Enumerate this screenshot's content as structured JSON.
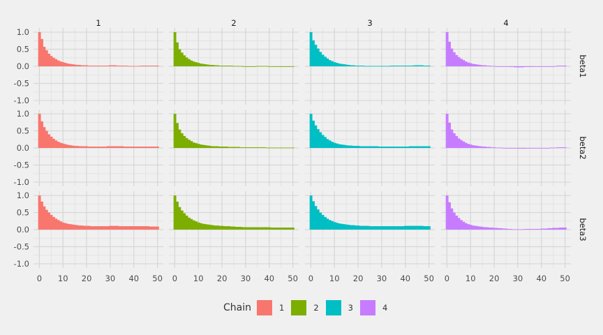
{
  "chart_data": {
    "type": "bar",
    "facet_columns": [
      "1",
      "2",
      "3",
      "4"
    ],
    "facet_rows": [
      "beta1",
      "beta2",
      "beta3"
    ],
    "x_ticks": [
      "0",
      "10",
      "20",
      "30",
      "40",
      "50"
    ],
    "y_ticks": [
      "1.0",
      "0.5",
      "0.0",
      "-0.5",
      "-1.0"
    ],
    "xlim": [
      0,
      50
    ],
    "ylim": [
      -1,
      1
    ],
    "grid": true,
    "legend_position": "bottom",
    "legend": {
      "title": "Chain",
      "items": [
        {
          "label": "1",
          "color": "#F8766D"
        },
        {
          "label": "2",
          "color": "#7CAE00"
        },
        {
          "label": "3",
          "color": "#00BFC4"
        },
        {
          "label": "4",
          "color": "#C77CFF"
        }
      ]
    },
    "lags": [
      0,
      1,
      2,
      3,
      4,
      5,
      6,
      7,
      8,
      9,
      10,
      11,
      12,
      13,
      14,
      15,
      16,
      17,
      18,
      19,
      20,
      21,
      22,
      23,
      24,
      25,
      26,
      27,
      28,
      29,
      30,
      31,
      32,
      33,
      34,
      35,
      36,
      37,
      38,
      39,
      40,
      41,
      42,
      43,
      44,
      45,
      46,
      47,
      48,
      49,
      50
    ],
    "autocorrelation": {
      "beta1": {
        "1": [
          1.0,
          0.8,
          0.57,
          0.47,
          0.37,
          0.3,
          0.25,
          0.21,
          0.17,
          0.14,
          0.12,
          0.1,
          0.08,
          0.07,
          0.06,
          0.05,
          0.04,
          0.04,
          0.03,
          0.03,
          0.03,
          0.02,
          0.02,
          0.02,
          0.02,
          0.02,
          0.02,
          0.02,
          0.02,
          0.02,
          0.03,
          0.03,
          0.03,
          0.02,
          0.02,
          0.02,
          0.02,
          0.02,
          0.01,
          0.01,
          0.01,
          0.01,
          0.01,
          0.02,
          0.02,
          0.02,
          0.02,
          0.02,
          0.02,
          0.02,
          0.02
        ],
        "2": [
          1.0,
          0.7,
          0.5,
          0.4,
          0.32,
          0.26,
          0.21,
          0.17,
          0.14,
          0.12,
          0.1,
          0.08,
          0.07,
          0.06,
          0.05,
          0.04,
          0.04,
          0.03,
          0.03,
          0.02,
          0.02,
          0.02,
          0.02,
          0.02,
          0.02,
          0.01,
          0.01,
          0.01,
          0.01,
          0.0,
          0.0,
          0.0,
          0.0,
          0.0,
          0.0,
          0.01,
          0.01,
          0.01,
          0.01,
          0.01,
          0.0,
          0.0,
          0.0,
          0.0,
          -0.01,
          -0.01,
          -0.01,
          -0.01,
          -0.01,
          -0.01,
          -0.01
        ],
        "3": [
          1.0,
          0.76,
          0.63,
          0.52,
          0.42,
          0.34,
          0.28,
          0.23,
          0.18,
          0.15,
          0.12,
          0.1,
          0.08,
          0.07,
          0.06,
          0.05,
          0.04,
          0.03,
          0.03,
          0.02,
          0.02,
          0.02,
          0.02,
          0.01,
          0.01,
          0.01,
          0.01,
          0.01,
          0.01,
          0.01,
          0.01,
          0.01,
          0.01,
          0.01,
          0.02,
          0.02,
          0.02,
          0.02,
          0.02,
          0.02,
          0.02,
          0.02,
          0.02,
          0.02,
          0.03,
          0.03,
          0.03,
          0.03,
          0.02,
          0.02,
          0.02
        ],
        "4": [
          1.0,
          0.72,
          0.52,
          0.41,
          0.33,
          0.27,
          0.22,
          0.18,
          0.14,
          0.11,
          0.09,
          0.07,
          0.06,
          0.05,
          0.04,
          0.03,
          0.03,
          0.02,
          0.02,
          0.01,
          0.01,
          0.0,
          0.0,
          0.0,
          -0.01,
          -0.01,
          -0.01,
          -0.02,
          -0.02,
          -0.03,
          -0.03,
          -0.03,
          -0.03,
          -0.02,
          -0.02,
          -0.02,
          -0.02,
          -0.01,
          -0.01,
          -0.01,
          -0.01,
          -0.01,
          -0.01,
          0.0,
          0.0,
          0.0,
          0.01,
          0.02,
          0.02,
          0.02,
          0.02
        ]
      },
      "beta2": {
        "1": [
          1.0,
          0.78,
          0.61,
          0.5,
          0.4,
          0.33,
          0.27,
          0.22,
          0.18,
          0.15,
          0.13,
          0.11,
          0.09,
          0.08,
          0.07,
          0.06,
          0.06,
          0.05,
          0.05,
          0.05,
          0.05,
          0.04,
          0.04,
          0.04,
          0.04,
          0.04,
          0.04,
          0.04,
          0.04,
          0.05,
          0.05,
          0.05,
          0.05,
          0.05,
          0.05,
          0.05,
          0.04,
          0.04,
          0.04,
          0.04,
          0.04,
          0.04,
          0.04,
          0.04,
          0.04,
          0.04,
          0.04,
          0.04,
          0.04,
          0.04,
          0.04
        ],
        "2": [
          1.0,
          0.73,
          0.54,
          0.43,
          0.35,
          0.29,
          0.24,
          0.2,
          0.16,
          0.14,
          0.12,
          0.1,
          0.09,
          0.08,
          0.07,
          0.06,
          0.05,
          0.05,
          0.05,
          0.04,
          0.04,
          0.04,
          0.04,
          0.03,
          0.03,
          0.03,
          0.03,
          0.03,
          0.02,
          0.02,
          0.02,
          0.02,
          0.02,
          0.02,
          0.02,
          0.02,
          0.02,
          0.02,
          0.02,
          0.01,
          0.01,
          0.01,
          0.01,
          0.01,
          0.01,
          0.01,
          0.01,
          0.01,
          0.01,
          0.01,
          0.01
        ],
        "3": [
          1.0,
          0.8,
          0.66,
          0.55,
          0.46,
          0.38,
          0.32,
          0.26,
          0.22,
          0.18,
          0.15,
          0.13,
          0.11,
          0.1,
          0.09,
          0.08,
          0.07,
          0.07,
          0.06,
          0.06,
          0.06,
          0.05,
          0.05,
          0.05,
          0.05,
          0.05,
          0.05,
          0.05,
          0.05,
          0.04,
          0.04,
          0.04,
          0.04,
          0.04,
          0.04,
          0.04,
          0.04,
          0.04,
          0.04,
          0.04,
          0.04,
          0.04,
          0.05,
          0.05,
          0.05,
          0.05,
          0.05,
          0.05,
          0.05,
          0.05,
          0.05
        ],
        "4": [
          1.0,
          0.74,
          0.54,
          0.43,
          0.35,
          0.28,
          0.23,
          0.19,
          0.15,
          0.12,
          0.1,
          0.08,
          0.07,
          0.06,
          0.05,
          0.04,
          0.04,
          0.03,
          0.03,
          0.02,
          0.02,
          0.01,
          0.01,
          0.01,
          0.0,
          0.0,
          0.0,
          0.0,
          -0.01,
          -0.01,
          -0.02,
          -0.02,
          -0.02,
          -0.02,
          -0.01,
          -0.01,
          -0.01,
          -0.01,
          -0.01,
          0.0,
          0.0,
          0.0,
          0.0,
          0.0,
          0.01,
          0.01,
          0.01,
          0.02,
          0.02,
          0.02,
          0.02
        ]
      },
      "beta3": {
        "1": [
          1.0,
          0.82,
          0.68,
          0.58,
          0.5,
          0.43,
          0.37,
          0.32,
          0.28,
          0.24,
          0.21,
          0.19,
          0.17,
          0.16,
          0.15,
          0.14,
          0.13,
          0.12,
          0.12,
          0.11,
          0.11,
          0.11,
          0.1,
          0.1,
          0.1,
          0.1,
          0.1,
          0.1,
          0.1,
          0.1,
          0.11,
          0.11,
          0.11,
          0.11,
          0.1,
          0.1,
          0.1,
          0.1,
          0.1,
          0.1,
          0.1,
          0.1,
          0.1,
          0.1,
          0.1,
          0.1,
          0.1,
          0.09,
          0.09,
          0.09,
          0.09
        ],
        "2": [
          1.0,
          0.82,
          0.66,
          0.56,
          0.48,
          0.41,
          0.35,
          0.31,
          0.27,
          0.24,
          0.21,
          0.19,
          0.17,
          0.16,
          0.15,
          0.14,
          0.13,
          0.12,
          0.12,
          0.11,
          0.11,
          0.1,
          0.1,
          0.1,
          0.09,
          0.09,
          0.08,
          0.08,
          0.08,
          0.07,
          0.07,
          0.07,
          0.07,
          0.07,
          0.07,
          0.07,
          0.07,
          0.07,
          0.07,
          0.07,
          0.07,
          0.06,
          0.06,
          0.06,
          0.06,
          0.06,
          0.06,
          0.06,
          0.06,
          0.06,
          0.06
        ],
        "3": [
          1.0,
          0.83,
          0.69,
          0.59,
          0.5,
          0.43,
          0.37,
          0.32,
          0.28,
          0.25,
          0.22,
          0.2,
          0.18,
          0.17,
          0.16,
          0.15,
          0.14,
          0.13,
          0.13,
          0.12,
          0.12,
          0.11,
          0.11,
          0.11,
          0.11,
          0.1,
          0.1,
          0.1,
          0.1,
          0.1,
          0.1,
          0.1,
          0.1,
          0.1,
          0.1,
          0.1,
          0.1,
          0.1,
          0.1,
          0.1,
          0.11,
          0.11,
          0.11,
          0.11,
          0.11,
          0.11,
          0.11,
          0.11,
          0.1,
          0.1,
          0.1
        ],
        "4": [
          1.0,
          0.8,
          0.62,
          0.5,
          0.41,
          0.34,
          0.28,
          0.23,
          0.19,
          0.16,
          0.14,
          0.12,
          0.11,
          0.1,
          0.09,
          0.08,
          0.07,
          0.07,
          0.06,
          0.06,
          0.05,
          0.05,
          0.04,
          0.04,
          0.03,
          0.03,
          0.02,
          0.02,
          0.01,
          0.01,
          0.01,
          0.01,
          0.01,
          0.02,
          0.02,
          0.02,
          0.02,
          0.02,
          0.02,
          0.02,
          0.03,
          0.03,
          0.03,
          0.04,
          0.04,
          0.05,
          0.05,
          0.05,
          0.06,
          0.06,
          0.06
        ]
      }
    }
  }
}
